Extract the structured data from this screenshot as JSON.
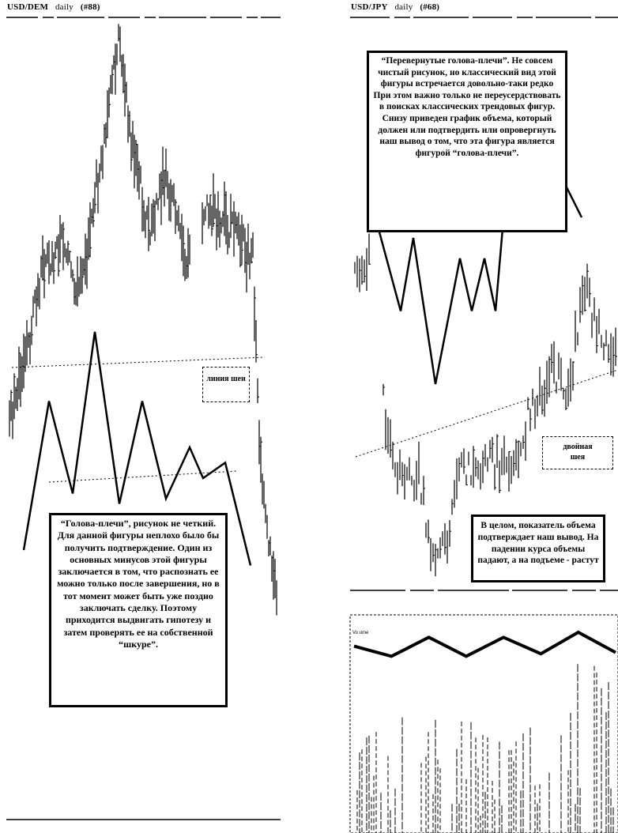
{
  "left": {
    "header": {
      "pair": "USD/DEM",
      "period": "daily",
      "num": "(#88)"
    },
    "note": "“Голова-плечи”, рисунок не четкий. Для данной фигуры неплохо было бы получить подтверждение. Один из основных минусов этой фигуры заключается в том, что распознать ее можно только после завершения, но в тот момент может быть уже поздно заключать сделку. Поэтому приходится выдвигать гипотезу и затем проверять ее на собственной “шкуре”.",
    "neck_label": "линия шеи"
  },
  "right": {
    "header": {
      "pair": "USD/JPY",
      "period": "daily",
      "num": "(#68)"
    },
    "note_top": "“Перевернутые голова-плечи”. Не совсем чистый рисунок, но классический вид этой фигуры встречается довольно-таки редко При этом важно только не переусердствовать в поисках классических трендовых фигур. Снизу приведен график объема, который должен или подтвердить или опровергнуть наш вывод о том, что эта фигура является фигурой “голова-плечи”.",
    "note_bottom": "В целом, показатель объема подтверждает наш вывод. На падении курса объемы падают, а на подъеме - растут",
    "neck_label": "двойная шея",
    "volume_label": "Vo ume"
  },
  "chart_data": [
    {
      "type": "line",
      "title": "USD/DEM daily (#88)",
      "pattern_path": [
        [
          0,
          0.12
        ],
        [
          1,
          0.7
        ],
        [
          2,
          0.34
        ],
        [
          3,
          0.97
        ],
        [
          4,
          0.3
        ],
        [
          5,
          0.7
        ],
        [
          6,
          0.32
        ],
        [
          7,
          0.52
        ],
        [
          8,
          0.4
        ],
        [
          9,
          0.46
        ],
        [
          10,
          0.06
        ]
      ],
      "annotation": "линия шеи"
    },
    {
      "type": "line",
      "title": "USD/JPY daily (#68)",
      "pattern_path": [
        [
          0,
          0.72
        ],
        [
          1,
          0.45
        ],
        [
          2,
          0.7
        ],
        [
          3,
          0.2
        ],
        [
          4,
          0.63
        ],
        [
          5,
          0.45
        ],
        [
          6,
          0.63
        ],
        [
          7,
          0.45
        ],
        [
          8,
          0.95
        ],
        [
          9,
          0.9
        ],
        [
          10,
          0.77
        ]
      ],
      "annotation": "двойная шея"
    },
    {
      "type": "line",
      "title": "Vo ume",
      "pattern_path": [
        [
          0,
          0.78
        ],
        [
          1,
          0.62
        ],
        [
          2,
          0.92
        ],
        [
          3,
          0.62
        ],
        [
          4,
          0.92
        ],
        [
          5,
          0.66
        ],
        [
          6,
          1.0
        ],
        [
          7,
          0.68
        ]
      ]
    }
  ]
}
